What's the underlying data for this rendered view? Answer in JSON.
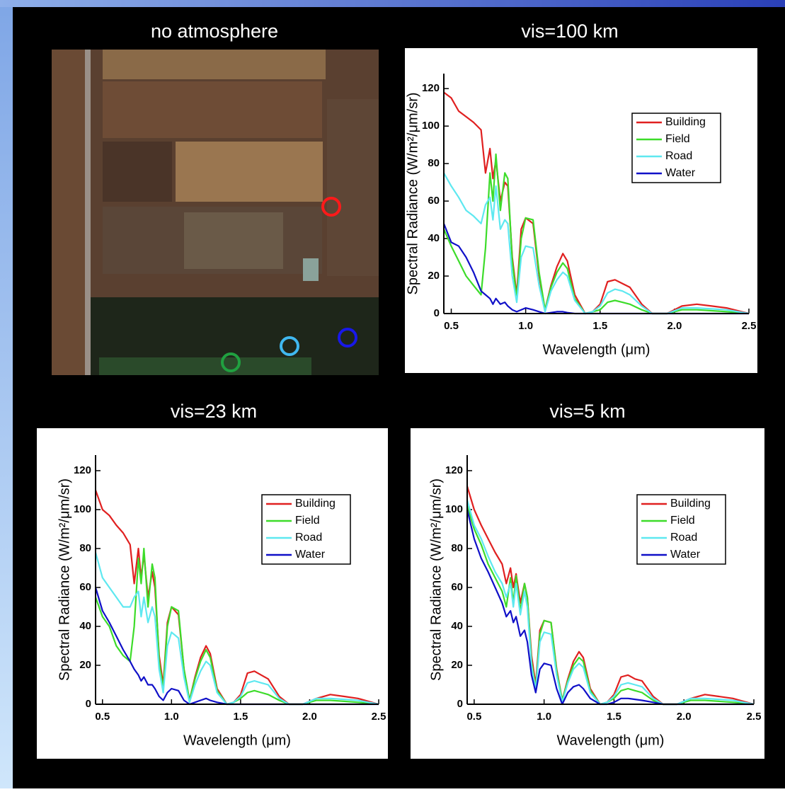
{
  "image_panel": {
    "title": "no atmosphere"
  },
  "chart_data": [
    {
      "type": "line",
      "title": "vis=100 km",
      "x_label": "Wavelength (μm)",
      "y_label": "Spectral Radiance (W/m²/μm/sr)",
      "xlim": [
        0.45,
        2.5
      ],
      "ylim": [
        0,
        128
      ],
      "xticks": [
        0.5,
        {
          "value": 1,
          "label": "1.0"
        },
        1.5,
        {
          "value": 2,
          "label": "2.0"
        },
        2.5
      ],
      "yticks": [
        0,
        20,
        40,
        60,
        80,
        100,
        120
      ],
      "legend": "upper right",
      "x": [
        0.45,
        0.5,
        0.55,
        0.6,
        0.65,
        0.7,
        0.73,
        0.76,
        0.78,
        0.8,
        0.83,
        0.86,
        0.88,
        0.91,
        0.94,
        0.97,
        1.0,
        1.05,
        1.09,
        1.13,
        1.17,
        1.21,
        1.25,
        1.28,
        1.33,
        1.4,
        1.45,
        1.5,
        1.55,
        1.6,
        1.65,
        1.7,
        1.78,
        1.85,
        1.95,
        2.05,
        2.15,
        2.25,
        2.35,
        2.5
      ],
      "series": [
        {
          "name": "Building",
          "color": "#e02020",
          "values": [
            118,
            115,
            108,
            105,
            102,
            98,
            75,
            88,
            72,
            82,
            60,
            70,
            68,
            30,
            10,
            45,
            51,
            48,
            20,
            2,
            15,
            25,
            32,
            28,
            10,
            0,
            1,
            5,
            17,
            18,
            16,
            14,
            5,
            0,
            0,
            4,
            5,
            4,
            3,
            0
          ]
        },
        {
          "name": "Field",
          "color": "#3ddc2a",
          "values": [
            45,
            36,
            28,
            20,
            15,
            10,
            35,
            75,
            60,
            85,
            55,
            75,
            72,
            28,
            8,
            40,
            51,
            50,
            22,
            2,
            14,
            22,
            27,
            24,
            8,
            0,
            1,
            2,
            6,
            7,
            6,
            5,
            2,
            0,
            0,
            2,
            2,
            1.5,
            1,
            0
          ]
        },
        {
          "name": "Road",
          "color": "#5ee8f0",
          "values": [
            75,
            68,
            62,
            55,
            52,
            48,
            58,
            62,
            50,
            68,
            45,
            50,
            48,
            20,
            6,
            30,
            36,
            35,
            15,
            1,
            12,
            18,
            22,
            20,
            7,
            0,
            1,
            4,
            11,
            13,
            12,
            10,
            4,
            0,
            0,
            3,
            3,
            2.5,
            2,
            0
          ]
        },
        {
          "name": "Water",
          "color": "#1010c8",
          "values": [
            48,
            38,
            36,
            30,
            22,
            12,
            10,
            8,
            5,
            8,
            5,
            6,
            4,
            2,
            1,
            2,
            3,
            2,
            1,
            0,
            0.5,
            1,
            1,
            0.5,
            0,
            0,
            0,
            0,
            0,
            0,
            0,
            0,
            0,
            0,
            0,
            0,
            0,
            0,
            0,
            0
          ]
        }
      ]
    },
    {
      "type": "line",
      "title": "vis=23 km",
      "x_label": "Wavelength (μm)",
      "y_label": "Spectral Radiance (W/m²/μm/sr)",
      "xlim": [
        0.45,
        2.5
      ],
      "ylim": [
        0,
        128
      ],
      "xticks": [
        0.5,
        {
          "value": 1,
          "label": "1.0"
        },
        1.5,
        {
          "value": 2,
          "label": "2.0"
        },
        2.5
      ],
      "yticks": [
        0,
        20,
        40,
        60,
        80,
        100,
        120
      ],
      "legend": "upper right",
      "x": [
        0.45,
        0.5,
        0.55,
        0.6,
        0.65,
        0.7,
        0.73,
        0.76,
        0.78,
        0.8,
        0.83,
        0.86,
        0.88,
        0.91,
        0.94,
        0.97,
        1.0,
        1.05,
        1.09,
        1.13,
        1.17,
        1.21,
        1.25,
        1.28,
        1.33,
        1.4,
        1.45,
        1.5,
        1.55,
        1.6,
        1.65,
        1.7,
        1.78,
        1.85,
        1.95,
        2.05,
        2.15,
        2.25,
        2.35,
        2.5
      ],
      "series": [
        {
          "name": "Building",
          "color": "#e02020",
          "values": [
            110,
            100,
            97,
            92,
            88,
            82,
            62,
            80,
            65,
            77,
            55,
            68,
            60,
            25,
            10,
            42,
            50,
            46,
            18,
            2,
            14,
            24,
            30,
            26,
            8,
            0,
            1,
            5,
            16,
            17,
            15,
            13,
            4,
            0,
            0,
            3,
            5,
            4,
            3,
            0
          ]
        },
        {
          "name": "Field",
          "color": "#3ddc2a",
          "values": [
            55,
            45,
            40,
            30,
            25,
            22,
            40,
            75,
            62,
            80,
            50,
            72,
            65,
            22,
            8,
            40,
            50,
            48,
            18,
            2,
            13,
            22,
            28,
            24,
            7,
            0,
            1,
            3,
            6,
            7,
            6,
            5,
            2,
            0,
            0,
            2,
            2,
            1.5,
            1,
            0
          ]
        },
        {
          "name": "Road",
          "color": "#5ee8f0",
          "values": [
            78,
            65,
            60,
            55,
            50,
            50,
            55,
            58,
            45,
            55,
            42,
            50,
            45,
            18,
            6,
            30,
            37,
            34,
            14,
            1,
            10,
            17,
            22,
            20,
            6,
            0,
            1,
            4,
            11,
            12,
            11,
            10,
            3,
            0,
            0,
            3,
            3,
            2.5,
            2,
            0
          ]
        },
        {
          "name": "Water",
          "color": "#1010c8",
          "values": [
            60,
            48,
            42,
            35,
            28,
            22,
            18,
            15,
            12,
            14,
            10,
            10,
            8,
            4,
            2,
            6,
            8,
            7,
            2,
            0,
            1,
            2,
            3,
            2,
            1,
            0,
            0,
            0,
            0,
            0,
            0,
            0,
            0,
            0,
            0,
            0,
            0,
            0,
            0,
            0
          ]
        }
      ]
    },
    {
      "type": "line",
      "title": "vis=5 km",
      "x_label": "Wavelength (μm)",
      "y_label": "Spectral Radiance (W/m²/μm/sr)",
      "xlim": [
        0.45,
        2.5
      ],
      "ylim": [
        0,
        128
      ],
      "xticks": [
        0.5,
        {
          "value": 1,
          "label": "1.0"
        },
        1.5,
        {
          "value": 2,
          "label": "2.0"
        },
        2.5
      ],
      "yticks": [
        0,
        20,
        40,
        60,
        80,
        100,
        120
      ],
      "legend": "upper right",
      "x": [
        0.45,
        0.5,
        0.55,
        0.6,
        0.65,
        0.7,
        0.73,
        0.76,
        0.78,
        0.8,
        0.83,
        0.86,
        0.88,
        0.91,
        0.94,
        0.97,
        1.0,
        1.05,
        1.09,
        1.13,
        1.17,
        1.21,
        1.25,
        1.28,
        1.33,
        1.4,
        1.45,
        1.5,
        1.55,
        1.6,
        1.65,
        1.7,
        1.78,
        1.85,
        1.95,
        2.05,
        2.15,
        2.25,
        2.35,
        2.5
      ],
      "series": [
        {
          "name": "Building",
          "color": "#e02020",
          "values": [
            112,
            100,
            92,
            85,
            78,
            72,
            62,
            70,
            60,
            67,
            52,
            62,
            55,
            25,
            10,
            38,
            43,
            42,
            18,
            2,
            13,
            22,
            27,
            24,
            8,
            0,
            1,
            5,
            14,
            15,
            13,
            12,
            4,
            0,
            0,
            3,
            5,
            4,
            3,
            0
          ]
        },
        {
          "name": "Field",
          "color": "#3ddc2a",
          "values": [
            102,
            90,
            82,
            72,
            65,
            58,
            50,
            65,
            52,
            66,
            48,
            62,
            55,
            22,
            8,
            36,
            43,
            42,
            17,
            2,
            12,
            20,
            24,
            22,
            7,
            0,
            1,
            3,
            7,
            8,
            7,
            6,
            2,
            0,
            0,
            2,
            2,
            1.5,
            1,
            0
          ]
        },
        {
          "name": "Road",
          "color": "#5ee8f0",
          "values": [
            105,
            92,
            85,
            76,
            68,
            62,
            55,
            62,
            50,
            62,
            46,
            58,
            50,
            20,
            7,
            32,
            37,
            36,
            15,
            1,
            11,
            18,
            21,
            19,
            6,
            0,
            1,
            4,
            10,
            11,
            10,
            9,
            3,
            0,
            0,
            3,
            3,
            2.5,
            2,
            0
          ]
        },
        {
          "name": "Water",
          "color": "#1010c8",
          "values": [
            100,
            85,
            75,
            68,
            60,
            52,
            45,
            48,
            42,
            45,
            35,
            38,
            32,
            15,
            6,
            18,
            21,
            20,
            8,
            0,
            6,
            9,
            10,
            8,
            3,
            0,
            0,
            1,
            3,
            3,
            2.5,
            2,
            1,
            0,
            0,
            0,
            0,
            0,
            0,
            0
          ]
        }
      ]
    }
  ]
}
